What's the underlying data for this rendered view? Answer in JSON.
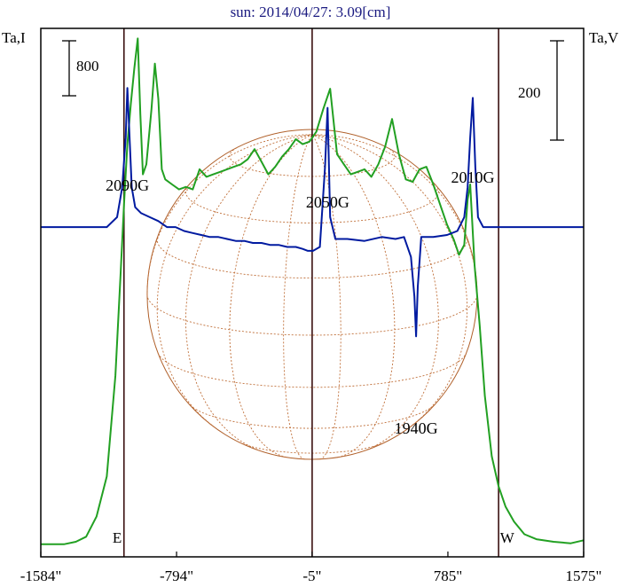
{
  "chart_data": {
    "type": "line",
    "title": "sun: 2014/04/27: 3.09[cm]",
    "ylabel_left": "Ta,I",
    "ylabel_right": "Ta,V",
    "xlim": [
      -1584,
      1575
    ],
    "ticks": [
      {
        "value": -1584,
        "label": "-1584\""
      },
      {
        "value": -794,
        "label": "-794\""
      },
      {
        "value": -5,
        "label": "-5\""
      },
      {
        "value": 785,
        "label": "785\""
      },
      {
        "value": 1575,
        "label": "1575\""
      }
    ],
    "scale_bars": [
      {
        "side": "left",
        "label": "800"
      },
      {
        "side": "right",
        "label": "200"
      }
    ],
    "vertical_lines": [
      -1100,
      -5,
      1080
    ],
    "limb_labels": [
      {
        "x": -1140,
        "label": "E"
      },
      {
        "x": 1130,
        "label": "W"
      }
    ],
    "disk": {
      "center_x": -5,
      "radius": 960
    },
    "series": [
      {
        "color": "#22a022",
        "ylim": [
          0,
          10500
        ],
        "points": [
          [
            -1584,
            250
          ],
          [
            -1450,
            250
          ],
          [
            -1380,
            300
          ],
          [
            -1320,
            400
          ],
          [
            -1260,
            800
          ],
          [
            -1200,
            1600
          ],
          [
            -1150,
            3600
          ],
          [
            -1120,
            5600
          ],
          [
            -1100,
            7000
          ],
          [
            -1080,
            8200
          ],
          [
            -1060,
            9000
          ],
          [
            -1040,
            9700
          ],
          [
            -1020,
            10300
          ],
          [
            -1005,
            8800
          ],
          [
            -990,
            7600
          ],
          [
            -970,
            7800
          ],
          [
            -940,
            8900
          ],
          [
            -920,
            9800
          ],
          [
            -900,
            9100
          ],
          [
            -880,
            7700
          ],
          [
            -860,
            7500
          ],
          [
            -820,
            7400
          ],
          [
            -780,
            7300
          ],
          [
            -740,
            7350
          ],
          [
            -700,
            7300
          ],
          [
            -660,
            7700
          ],
          [
            -620,
            7550
          ],
          [
            -580,
            7600
          ],
          [
            -540,
            7650
          ],
          [
            -500,
            7700
          ],
          [
            -460,
            7750
          ],
          [
            -420,
            7800
          ],
          [
            -380,
            7900
          ],
          [
            -340,
            8100
          ],
          [
            -300,
            7850
          ],
          [
            -260,
            7600
          ],
          [
            -220,
            7750
          ],
          [
            -180,
            7950
          ],
          [
            -140,
            8100
          ],
          [
            -100,
            8300
          ],
          [
            -60,
            8200
          ],
          [
            -20,
            8250
          ],
          [
            20,
            8450
          ],
          [
            60,
            8900
          ],
          [
            100,
            9300
          ],
          [
            140,
            8000
          ],
          [
            180,
            7800
          ],
          [
            220,
            7600
          ],
          [
            260,
            7650
          ],
          [
            300,
            7700
          ],
          [
            340,
            7550
          ],
          [
            380,
            7800
          ],
          [
            420,
            8150
          ],
          [
            460,
            8700
          ],
          [
            500,
            8000
          ],
          [
            540,
            7500
          ],
          [
            580,
            7450
          ],
          [
            620,
            7700
          ],
          [
            660,
            7750
          ],
          [
            700,
            7400
          ],
          [
            740,
            7000
          ],
          [
            780,
            6600
          ],
          [
            820,
            6300
          ],
          [
            850,
            6000
          ],
          [
            880,
            6200
          ],
          [
            900,
            7100
          ],
          [
            915,
            7400
          ],
          [
            940,
            5800
          ],
          [
            970,
            4600
          ],
          [
            1000,
            3200
          ],
          [
            1040,
            2000
          ],
          [
            1080,
            1400
          ],
          [
            1120,
            1000
          ],
          [
            1170,
            700
          ],
          [
            1230,
            450
          ],
          [
            1300,
            350
          ],
          [
            1400,
            300
          ],
          [
            1500,
            270
          ],
          [
            1575,
            330
          ]
        ]
      },
      {
        "color": "#001aa0",
        "ylim": [
          -1.66,
          1.0
        ],
        "points": [
          [
            -1584,
            0.0
          ],
          [
            -1500,
            0.0
          ],
          [
            -1400,
            0.0
          ],
          [
            -1300,
            0.0
          ],
          [
            -1200,
            0.0
          ],
          [
            -1140,
            0.05
          ],
          [
            -1110,
            0.2
          ],
          [
            -1090,
            0.45
          ],
          [
            -1080,
            0.7
          ],
          [
            -1070,
            0.5
          ],
          [
            -1055,
            0.2
          ],
          [
            -1035,
            0.1
          ],
          [
            -1000,
            0.07
          ],
          [
            -950,
            0.05
          ],
          [
            -900,
            0.03
          ],
          [
            -850,
            0.0
          ],
          [
            -800,
            0.0
          ],
          [
            -750,
            -0.02
          ],
          [
            -700,
            -0.03
          ],
          [
            -650,
            -0.04
          ],
          [
            -600,
            -0.05
          ],
          [
            -550,
            -0.05
          ],
          [
            -500,
            -0.06
          ],
          [
            -450,
            -0.07
          ],
          [
            -400,
            -0.07
          ],
          [
            -350,
            -0.08
          ],
          [
            -300,
            -0.08
          ],
          [
            -250,
            -0.09
          ],
          [
            -200,
            -0.09
          ],
          [
            -150,
            -0.1
          ],
          [
            -100,
            -0.1
          ],
          [
            -60,
            -0.11
          ],
          [
            -30,
            -0.12
          ],
          [
            0,
            -0.12
          ],
          [
            40,
            -0.1
          ],
          [
            70,
            0.3
          ],
          [
            85,
            0.6
          ],
          [
            100,
            0.05
          ],
          [
            130,
            -0.06
          ],
          [
            200,
            -0.06
          ],
          [
            300,
            -0.07
          ],
          [
            400,
            -0.05
          ],
          [
            480,
            -0.06
          ],
          [
            530,
            -0.05
          ],
          [
            570,
            -0.15
          ],
          [
            590,
            -0.35
          ],
          [
            600,
            -0.55
          ],
          [
            610,
            -0.3
          ],
          [
            630,
            -0.05
          ],
          [
            700,
            -0.05
          ],
          [
            780,
            -0.04
          ],
          [
            840,
            -0.02
          ],
          [
            880,
            0.05
          ],
          [
            900,
            0.2
          ],
          [
            915,
            0.45
          ],
          [
            930,
            0.65
          ],
          [
            945,
            0.3
          ],
          [
            960,
            0.05
          ],
          [
            990,
            0.0
          ],
          [
            1100,
            0.0
          ],
          [
            1200,
            0.0
          ],
          [
            1300,
            0.0
          ],
          [
            1400,
            0.0
          ],
          [
            1500,
            0.0
          ],
          [
            1575,
            0.0
          ]
        ]
      }
    ],
    "annotations": [
      {
        "text": "2090G",
        "x": -1080
      },
      {
        "text": "2050G",
        "x": 85
      },
      {
        "text": "2010G",
        "x": 930
      },
      {
        "text": "1940G",
        "x": 600
      }
    ]
  }
}
